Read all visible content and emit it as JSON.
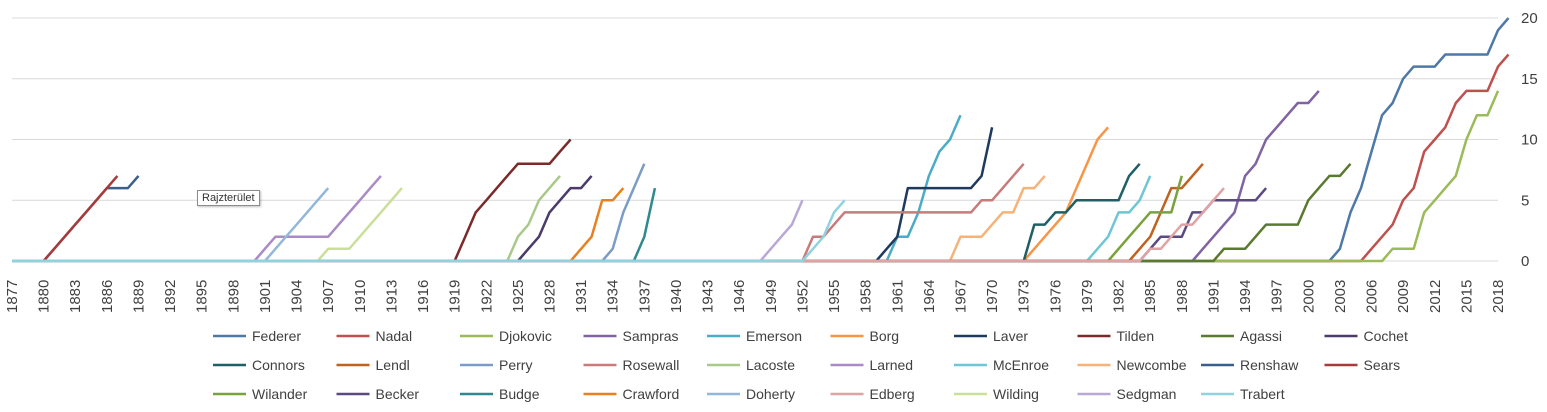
{
  "tooltip": "Rajzterület",
  "chart_data": {
    "type": "line",
    "x_range": [
      1877,
      2018
    ],
    "x_tick_step": 3,
    "ylim": [
      0,
      20
    ],
    "y_ticks": [
      0,
      5,
      10,
      15,
      20
    ],
    "y_axis_side": "right",
    "grid": "horizontal",
    "legend_position": "bottom",
    "series": [
      {
        "name": "Federer",
        "color": "#4e79a7",
        "points": [
          [
            1877,
            0
          ],
          [
            2002,
            0
          ],
          [
            2003,
            1
          ],
          [
            2004,
            4
          ],
          [
            2005,
            6
          ],
          [
            2006,
            9
          ],
          [
            2007,
            12
          ],
          [
            2008,
            13
          ],
          [
            2009,
            15
          ],
          [
            2010,
            16
          ],
          [
            2012,
            16
          ],
          [
            2013,
            17
          ],
          [
            2017,
            17
          ],
          [
            2018,
            19
          ],
          [
            2019,
            20
          ]
        ]
      },
      {
        "name": "Nadal",
        "color": "#c0504d",
        "points": [
          [
            1877,
            0
          ],
          [
            2004,
            0
          ],
          [
            2005,
            0
          ],
          [
            2006,
            1
          ],
          [
            2007,
            2
          ],
          [
            2008,
            3
          ],
          [
            2009,
            5
          ],
          [
            2010,
            6
          ],
          [
            2011,
            9
          ],
          [
            2012,
            10
          ],
          [
            2013,
            11
          ],
          [
            2014,
            13
          ],
          [
            2015,
            14
          ],
          [
            2017,
            14
          ],
          [
            2018,
            16
          ],
          [
            2019,
            17
          ]
        ]
      },
      {
        "name": "Djokovic",
        "color": "#9bbb59",
        "points": [
          [
            1877,
            0
          ],
          [
            2007,
            0
          ],
          [
            2008,
            1
          ],
          [
            2010,
            1
          ],
          [
            2011,
            4
          ],
          [
            2012,
            5
          ],
          [
            2013,
            6
          ],
          [
            2014,
            7
          ],
          [
            2015,
            10
          ],
          [
            2016,
            12
          ],
          [
            2017,
            12
          ],
          [
            2018,
            14
          ]
        ]
      },
      {
        "name": "Sampras",
        "color": "#8064a2",
        "points": [
          [
            1877,
            0
          ],
          [
            1989,
            0
          ],
          [
            1990,
            1
          ],
          [
            1993,
            4
          ],
          [
            1994,
            7
          ],
          [
            1995,
            8
          ],
          [
            1996,
            10
          ],
          [
            1997,
            11
          ],
          [
            1998,
            12
          ],
          [
            1999,
            13
          ],
          [
            2000,
            13
          ],
          [
            2001,
            14
          ]
        ]
      },
      {
        "name": "Emerson",
        "color": "#4bacc6",
        "points": [
          [
            1877,
            0
          ],
          [
            1960,
            0
          ],
          [
            1961,
            2
          ],
          [
            1962,
            2
          ],
          [
            1963,
            4
          ],
          [
            1964,
            7
          ],
          [
            1965,
            9
          ],
          [
            1966,
            10
          ],
          [
            1967,
            12
          ]
        ]
      },
      {
        "name": "Borg",
        "color": "#f79646",
        "points": [
          [
            1877,
            0
          ],
          [
            1973,
            0
          ],
          [
            1974,
            1
          ],
          [
            1975,
            2
          ],
          [
            1976,
            3
          ],
          [
            1977,
            4
          ],
          [
            1978,
            6
          ],
          [
            1979,
            8
          ],
          [
            1980,
            10
          ],
          [
            1981,
            11
          ]
        ]
      },
      {
        "name": "Laver",
        "color": "#1f3a5f",
        "points": [
          [
            1877,
            0
          ],
          [
            1959,
            0
          ],
          [
            1960,
            1
          ],
          [
            1961,
            2
          ],
          [
            1962,
            6
          ],
          [
            1968,
            6
          ],
          [
            1969,
            7
          ],
          [
            1970,
            11
          ]
        ]
      },
      {
        "name": "Tilden",
        "color": "#7b2a2a",
        "points": [
          [
            1877,
            0
          ],
          [
            1919,
            0
          ],
          [
            1920,
            2
          ],
          [
            1921,
            4
          ],
          [
            1922,
            5
          ],
          [
            1923,
            6
          ],
          [
            1924,
            7
          ],
          [
            1925,
            8
          ],
          [
            1928,
            8
          ],
          [
            1929,
            9
          ],
          [
            1930,
            10
          ]
        ]
      },
      {
        "name": "Agassi",
        "color": "#5a7a30",
        "points": [
          [
            1877,
            0
          ],
          [
            1991,
            0
          ],
          [
            1992,
            1
          ],
          [
            1994,
            1
          ],
          [
            1995,
            2
          ],
          [
            1996,
            3
          ],
          [
            1999,
            3
          ],
          [
            2000,
            5
          ],
          [
            2001,
            6
          ],
          [
            2002,
            7
          ],
          [
            2003,
            7
          ],
          [
            2004,
            8
          ]
        ]
      },
      {
        "name": "Cochet",
        "color": "#4b3a6b",
        "points": [
          [
            1877,
            0
          ],
          [
            1925,
            0
          ],
          [
            1926,
            1
          ],
          [
            1927,
            2
          ],
          [
            1928,
            4
          ],
          [
            1929,
            5
          ],
          [
            1930,
            6
          ],
          [
            1931,
            6
          ],
          [
            1932,
            7
          ]
        ]
      },
      {
        "name": "Connors",
        "color": "#1f5f66",
        "points": [
          [
            1877,
            0
          ],
          [
            1973,
            0
          ],
          [
            1974,
            3
          ],
          [
            1975,
            3
          ],
          [
            1976,
            4
          ],
          [
            1977,
            4
          ],
          [
            1978,
            5
          ],
          [
            1982,
            5
          ],
          [
            1983,
            7
          ],
          [
            1984,
            8
          ]
        ]
      },
      {
        "name": "Lendl",
        "color": "#c0621f",
        "points": [
          [
            1877,
            0
          ],
          [
            1983,
            0
          ],
          [
            1984,
            1
          ],
          [
            1985,
            2
          ],
          [
            1986,
            4
          ],
          [
            1987,
            6
          ],
          [
            1988,
            6
          ],
          [
            1989,
            7
          ],
          [
            1990,
            8
          ]
        ]
      },
      {
        "name": "Perry",
        "color": "#7a9cc6",
        "points": [
          [
            1877,
            0
          ],
          [
            1933,
            0
          ],
          [
            1934,
            1
          ],
          [
            1935,
            4
          ],
          [
            1936,
            6
          ],
          [
            1937,
            8
          ]
        ]
      },
      {
        "name": "Rosewall",
        "color": "#c87b7b",
        "points": [
          [
            1877,
            0
          ],
          [
            1952,
            0
          ],
          [
            1953,
            2
          ],
          [
            1954,
            2
          ],
          [
            1955,
            3
          ],
          [
            1956,
            4
          ],
          [
            1968,
            4
          ],
          [
            1969,
            5
          ],
          [
            1970,
            5
          ],
          [
            1971,
            6
          ],
          [
            1972,
            7
          ],
          [
            1973,
            8
          ]
        ]
      },
      {
        "name": "Lacoste",
        "color": "#a9c98a",
        "points": [
          [
            1877,
            0
          ],
          [
            1924,
            0
          ],
          [
            1925,
            2
          ],
          [
            1926,
            3
          ],
          [
            1927,
            5
          ],
          [
            1928,
            6
          ],
          [
            1929,
            7
          ]
        ]
      },
      {
        "name": "Larned",
        "color": "#a98bc6",
        "points": [
          [
            1877,
            0
          ],
          [
            1900,
            0
          ],
          [
            1901,
            1
          ],
          [
            1902,
            2
          ],
          [
            1907,
            2
          ],
          [
            1908,
            3
          ],
          [
            1909,
            4
          ],
          [
            1910,
            5
          ],
          [
            1911,
            6
          ],
          [
            1912,
            7
          ]
        ]
      },
      {
        "name": "McEnroe",
        "color": "#6fc6d4",
        "points": [
          [
            1877,
            0
          ],
          [
            1979,
            0
          ],
          [
            1980,
            1
          ],
          [
            1981,
            2
          ],
          [
            1982,
            4
          ],
          [
            1983,
            4
          ],
          [
            1984,
            5
          ],
          [
            1985,
            7
          ]
        ]
      },
      {
        "name": "Newcombe",
        "color": "#f5b37a",
        "points": [
          [
            1877,
            0
          ],
          [
            1966,
            0
          ],
          [
            1967,
            2
          ],
          [
            1969,
            2
          ],
          [
            1970,
            3
          ],
          [
            1971,
            4
          ],
          [
            1972,
            4
          ],
          [
            1973,
            6
          ],
          [
            1974,
            6
          ],
          [
            1975,
            7
          ]
        ]
      },
      {
        "name": "Renshaw",
        "color": "#3a5f8c",
        "points": [
          [
            1877,
            0
          ],
          [
            1880,
            0
          ],
          [
            1881,
            1
          ],
          [
            1882,
            2
          ],
          [
            1883,
            3
          ],
          [
            1884,
            4
          ],
          [
            1885,
            5
          ],
          [
            1886,
            6
          ],
          [
            1888,
            6
          ],
          [
            1889,
            7
          ]
        ]
      },
      {
        "name": "Sears",
        "color": "#a83a3a",
        "points": [
          [
            1877,
            0
          ],
          [
            1880,
            0
          ],
          [
            1881,
            1
          ],
          [
            1882,
            2
          ],
          [
            1883,
            3
          ],
          [
            1884,
            4
          ],
          [
            1885,
            5
          ],
          [
            1886,
            6
          ],
          [
            1887,
            7
          ]
        ]
      },
      {
        "name": "Wilander",
        "color": "#79a33a",
        "points": [
          [
            1877,
            0
          ],
          [
            1981,
            0
          ],
          [
            1982,
            1
          ],
          [
            1983,
            2
          ],
          [
            1984,
            3
          ],
          [
            1985,
            4
          ],
          [
            1987,
            4
          ],
          [
            1988,
            7
          ]
        ]
      },
      {
        "name": "Becker",
        "color": "#5b4a82",
        "points": [
          [
            1877,
            0
          ],
          [
            1984,
            0
          ],
          [
            1985,
            1
          ],
          [
            1986,
            2
          ],
          [
            1988,
            2
          ],
          [
            1989,
            4
          ],
          [
            1990,
            4
          ],
          [
            1991,
            5
          ],
          [
            1995,
            5
          ],
          [
            1996,
            6
          ]
        ]
      },
      {
        "name": "Budge",
        "color": "#2f8a8f",
        "points": [
          [
            1877,
            0
          ],
          [
            1936,
            0
          ],
          [
            1937,
            2
          ],
          [
            1938,
            6
          ]
        ]
      },
      {
        "name": "Crawford",
        "color": "#e8801f",
        "points": [
          [
            1877,
            0
          ],
          [
            1930,
            0
          ],
          [
            1931,
            1
          ],
          [
            1932,
            2
          ],
          [
            1933,
            5
          ],
          [
            1934,
            5
          ],
          [
            1935,
            6
          ]
        ]
      },
      {
        "name": "Doherty",
        "color": "#93b7d9",
        "points": [
          [
            1877,
            0
          ],
          [
            1901,
            0
          ],
          [
            1902,
            1
          ],
          [
            1903,
            2
          ],
          [
            1904,
            3
          ],
          [
            1905,
            4
          ],
          [
            1906,
            5
          ],
          [
            1907,
            6
          ]
        ]
      },
      {
        "name": "Edberg",
        "color": "#e0a3a3",
        "points": [
          [
            1877,
            0
          ],
          [
            1984,
            0
          ],
          [
            1985,
            1
          ],
          [
            1986,
            1
          ],
          [
            1987,
            2
          ],
          [
            1988,
            3
          ],
          [
            1989,
            3
          ],
          [
            1990,
            4
          ],
          [
            1991,
            5
          ],
          [
            1992,
            6
          ]
        ]
      },
      {
        "name": "Wilding",
        "color": "#c9df9a",
        "points": [
          [
            1877,
            0
          ],
          [
            1906,
            0
          ],
          [
            1907,
            1
          ],
          [
            1909,
            1
          ],
          [
            1910,
            2
          ],
          [
            1911,
            3
          ],
          [
            1912,
            4
          ],
          [
            1913,
            5
          ],
          [
            1914,
            6
          ]
        ]
      },
      {
        "name": "Sedgman",
        "color": "#b9a8d6",
        "points": [
          [
            1877,
            0
          ],
          [
            1948,
            0
          ],
          [
            1949,
            1
          ],
          [
            1950,
            2
          ],
          [
            1951,
            3
          ],
          [
            1952,
            5
          ]
        ]
      },
      {
        "name": "Trabert",
        "color": "#8fd3df",
        "points": [
          [
            1877,
            0
          ],
          [
            1952,
            0
          ],
          [
            1953,
            1
          ],
          [
            1954,
            2
          ],
          [
            1955,
            4
          ],
          [
            1956,
            5
          ]
        ]
      }
    ]
  }
}
